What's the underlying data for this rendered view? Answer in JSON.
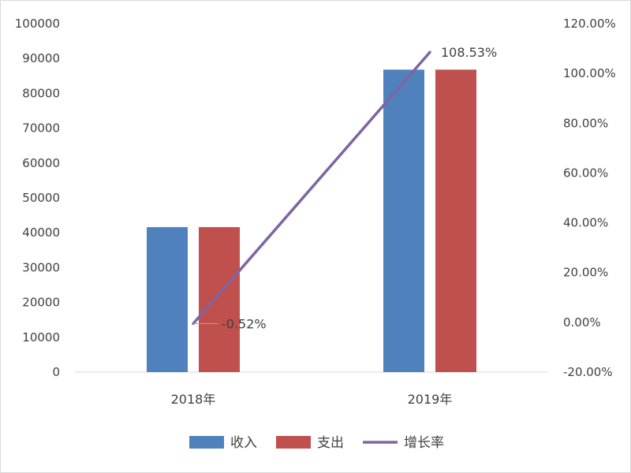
{
  "chart_data": {
    "type": "bar",
    "categories": [
      "2018年",
      "2019年"
    ],
    "series": [
      {
        "name": "收入",
        "type": "bar",
        "axis": "left",
        "color": "#4f81bd",
        "values": [
          41600,
          86800
        ]
      },
      {
        "name": "支出",
        "type": "bar",
        "axis": "left",
        "color": "#c0504d",
        "values": [
          41600,
          86800
        ]
      },
      {
        "name": "增长率",
        "type": "line",
        "axis": "right",
        "color": "#8064a2",
        "values": [
          -0.52,
          108.53
        ]
      }
    ],
    "data_labels": [
      "-0.52%",
      "108.53%"
    ],
    "y_left": {
      "ylim": [
        0,
        100000
      ],
      "ticks": [
        "0",
        "10000",
        "20000",
        "30000",
        "40000",
        "50000",
        "60000",
        "70000",
        "80000",
        "90000",
        "100000"
      ]
    },
    "y_right": {
      "ylim": [
        -20,
        120
      ],
      "ticks": [
        "-20.00%",
        "0.00%",
        "20.00%",
        "40.00%",
        "60.00%",
        "80.00%",
        "100.00%",
        "120.00%"
      ]
    },
    "title": "",
    "xlabel": "",
    "ylabel": "",
    "grid": false,
    "legend_position": "bottom"
  }
}
